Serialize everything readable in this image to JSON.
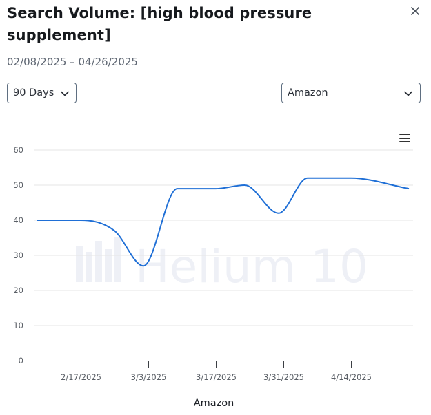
{
  "dialog": {
    "title": "Search Volume: [high blood pressure supplement]",
    "date_range": "02/08/2025 – 04/26/2025",
    "close_icon": "close-icon"
  },
  "controls": {
    "period_select": {
      "value": "90 Days",
      "icon": "chevron-down-icon"
    },
    "marketplace_select": {
      "value": "Amazon",
      "icon": "chevron-down-icon"
    }
  },
  "chart_menu": {
    "icon": "hamburger-menu-icon"
  },
  "watermark": "Helium 10",
  "colors": {
    "line": "#1f6fd6",
    "grid": "#e6e6e6",
    "watermark": "#eef0f6"
  },
  "chart_data": {
    "type": "line",
    "x_axis": {
      "type": "date",
      "range": [
        "2025-02-08",
        "2025-04-26"
      ],
      "ticks": [
        "2025-02-17",
        "2025-03-03",
        "2025-03-17",
        "2025-03-31",
        "2025-04-14"
      ],
      "tick_labels": [
        "2/17/2025",
        "3/3/2025",
        "3/17/2025",
        "3/31/2025",
        "4/14/2025"
      ]
    },
    "y_axis": {
      "range": [
        0,
        60
      ],
      "ticks": [
        0,
        10,
        20,
        30,
        40,
        50,
        60
      ]
    },
    "xlabel": "Amazon",
    "ylabel": "",
    "grid": true,
    "series": [
      {
        "x": [
          "2025-02-08",
          "2025-02-17",
          "2025-02-24",
          "2025-03-02",
          "2025-03-09",
          "2025-03-17",
          "2025-03-23",
          "2025-03-30",
          "2025-04-05",
          "2025-04-14",
          "2025-04-26"
        ],
        "values": [
          40,
          40,
          37,
          27,
          49,
          49,
          50,
          42,
          52,
          52,
          49
        ]
      }
    ]
  }
}
